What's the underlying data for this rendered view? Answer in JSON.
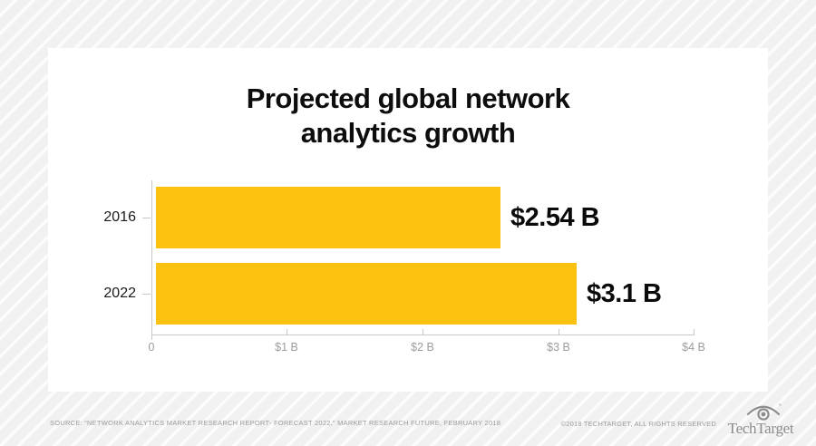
{
  "chart_data": {
    "type": "bar",
    "orientation": "horizontal",
    "title": "Projected global network analytics growth",
    "title_line1": "Projected global network",
    "title_line2": "analytics growth",
    "categories": [
      "2016",
      "2022"
    ],
    "values": [
      2.54,
      3.1
    ],
    "value_labels": [
      "$2.54 B",
      "$3.1 B"
    ],
    "x_ticks": [
      "0",
      "$1 B",
      "$2 B",
      "$3 B",
      "$4 B"
    ],
    "xlim": [
      0,
      4
    ],
    "xlabel": "",
    "ylabel": "",
    "grid": false,
    "legend": "none",
    "bar_color": "#FDC110"
  },
  "footer": {
    "source": "SOURCE: “NETWORK ANALYTICS MARKET RESEARCH REPORT- FORECAST 2022,” MARKET RESEARCH FUTURE, FEBRUARY 2018",
    "copyright": "©2018 TECHTARGET, ALL RIGHTS RESERVED",
    "logo_text": "TechTarget",
    "logo_trademark": "™"
  },
  "colors": {
    "bar": "#FDC110",
    "axis": "#C8C8C8",
    "tick_label": "#9C9C9C",
    "title_text": "#0D0D0D",
    "muted_text": "#9B9B9B",
    "card_background": "#FFFFFF",
    "page_stripe": "#F1F1F2"
  }
}
